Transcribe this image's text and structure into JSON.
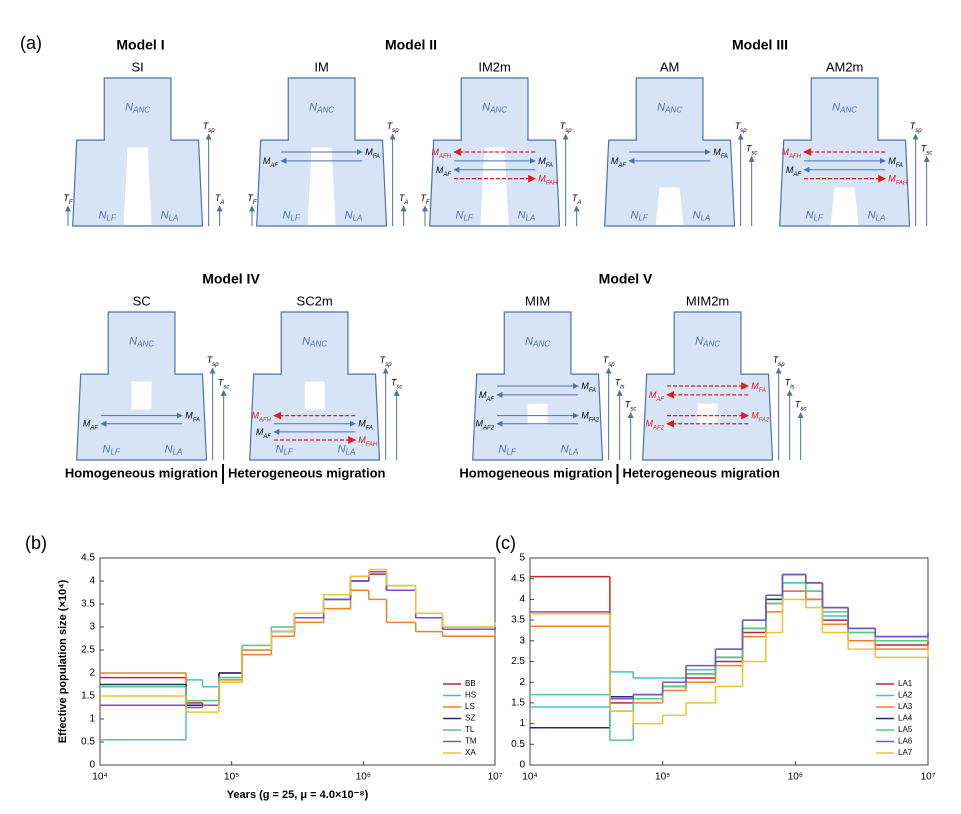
{
  "panel_a": {
    "panel_label": "(a)",
    "groups": [
      {
        "title": "Model I",
        "diagrams": [
          {
            "name": "SI",
            "split": "isolation",
            "pop_anc": {
              "base": "N",
              "sub": "ANC"
            },
            "pop_left": {
              "base": "N",
              "sub": "LF"
            },
            "pop_right": {
              "base": "N",
              "sub": "LA"
            },
            "times": [
              {
                "base": "T",
                "sub": "sp"
              }
            ],
            "t_left": {
              "base": "T",
              "sub": "F"
            },
            "t_right": {
              "base": "T",
              "sub": "A"
            },
            "migration": []
          }
        ]
      },
      {
        "title": "Model II",
        "diagrams": [
          {
            "name": "IM",
            "split": "isolation",
            "pop_anc": {
              "base": "N",
              "sub": "ANC"
            },
            "pop_left": {
              "base": "N",
              "sub": "LF"
            },
            "pop_right": {
              "base": "N",
              "sub": "LA"
            },
            "times": [
              {
                "base": "T",
                "sub": "sp"
              }
            ],
            "t_left": {
              "base": "T",
              "sub": "F"
            },
            "t_right": {
              "base": "T",
              "sub": "A"
            },
            "migration": [
              {
                "label": {
                  "base": "M",
                  "sub": "FA"
                },
                "dir": "right",
                "hetero": false,
                "phase": "early"
              },
              {
                "label": {
                  "base": "M",
                  "sub": "AF"
                },
                "dir": "left",
                "hetero": false,
                "phase": "early"
              }
            ]
          },
          {
            "name": "IM2m",
            "split": "isolation",
            "pop_anc": {
              "base": "N",
              "sub": "ANC"
            },
            "pop_left": {
              "base": "N",
              "sub": "LF"
            },
            "pop_right": {
              "base": "N",
              "sub": "LA"
            },
            "times": [
              {
                "base": "T",
                "sub": "sp"
              }
            ],
            "t_left": {
              "base": "T",
              "sub": "F"
            },
            "t_right": {
              "base": "T",
              "sub": "A"
            },
            "migration": [
              {
                "label": {
                  "base": "M",
                  "sub": "AFH"
                },
                "dir": "left",
                "hetero": true,
                "phase": "early"
              },
              {
                "label": {
                  "base": "M",
                  "sub": "FA"
                },
                "dir": "right",
                "hetero": false,
                "phase": "early"
              },
              {
                "label": {
                  "base": "M",
                  "sub": "AF"
                },
                "dir": "left",
                "hetero": false,
                "phase": "early"
              },
              {
                "label": {
                  "base": "M",
                  "sub": "FAH"
                },
                "dir": "right",
                "hetero": true,
                "phase": "early"
              }
            ]
          }
        ]
      },
      {
        "title": "Model III",
        "diagrams": [
          {
            "name": "AM",
            "split": "ancient",
            "pop_anc": {
              "base": "N",
              "sub": "ANC"
            },
            "pop_left": {
              "base": "N",
              "sub": "LF"
            },
            "pop_right": {
              "base": "N",
              "sub": "LA"
            },
            "times": [
              {
                "base": "T",
                "sub": "sp"
              },
              {
                "base": "T",
                "sub": "sc"
              }
            ],
            "migration": [
              {
                "label": {
                  "base": "M",
                  "sub": "FA"
                },
                "dir": "right",
                "hetero": false,
                "phase": "early"
              },
              {
                "label": {
                  "base": "M",
                  "sub": "AF"
                },
                "dir": "left",
                "hetero": false,
                "phase": "early"
              }
            ]
          },
          {
            "name": "AM2m",
            "split": "ancient",
            "pop_anc": {
              "base": "N",
              "sub": "ANC"
            },
            "pop_left": {
              "base": "N",
              "sub": "LF"
            },
            "pop_right": {
              "base": "N",
              "sub": "LA"
            },
            "times": [
              {
                "base": "T",
                "sub": "sp"
              },
              {
                "base": "T",
                "sub": "sc"
              }
            ],
            "migration": [
              {
                "label": {
                  "base": "M",
                  "sub": "AFH"
                },
                "dir": "left",
                "hetero": true,
                "phase": "early"
              },
              {
                "label": {
                  "base": "M",
                  "sub": "FA"
                },
                "dir": "right",
                "hetero": false,
                "phase": "early"
              },
              {
                "label": {
                  "base": "M",
                  "sub": "AF"
                },
                "dir": "left",
                "hetero": false,
                "phase": "early"
              },
              {
                "label": {
                  "base": "M",
                  "sub": "FAH"
                },
                "dir": "right",
                "hetero": true,
                "phase": "early"
              }
            ]
          }
        ]
      },
      {
        "title": "Model IV",
        "footer": [
          "Homogeneous migration",
          "Heterogeneous migration"
        ],
        "diagrams": [
          {
            "name": "SC",
            "split": "secondary",
            "pop_anc": {
              "base": "N",
              "sub": "ANC"
            },
            "pop_left": {
              "base": "N",
              "sub": "LF"
            },
            "pop_right": {
              "base": "N",
              "sub": "LA"
            },
            "times": [
              {
                "base": "T",
                "sub": "sp"
              },
              {
                "base": "T",
                "sub": "sc"
              }
            ],
            "migration": [
              {
                "label": {
                  "base": "M",
                  "sub": "FA"
                },
                "dir": "right",
                "hetero": false,
                "phase": "late"
              },
              {
                "label": {
                  "base": "M",
                  "sub": "AF"
                },
                "dir": "left",
                "hetero": false,
                "phase": "late"
              }
            ]
          },
          {
            "name": "SC2m",
            "split": "secondary",
            "pop_anc": {
              "base": "N",
              "sub": "ANC"
            },
            "pop_left": {
              "base": "N",
              "sub": "LF"
            },
            "pop_right": {
              "base": "N",
              "sub": "LA"
            },
            "times": [
              {
                "base": "T",
                "sub": "sp"
              },
              {
                "base": "T",
                "sub": "sc"
              }
            ],
            "migration": [
              {
                "label": {
                  "base": "M",
                  "sub": "AFH"
                },
                "dir": "left",
                "hetero": true,
                "phase": "late"
              },
              {
                "label": {
                  "base": "M",
                  "sub": "FA"
                },
                "dir": "right",
                "hetero": false,
                "phase": "late"
              },
              {
                "label": {
                  "base": "M",
                  "sub": "AF"
                },
                "dir": "left",
                "hetero": false,
                "phase": "late"
              },
              {
                "label": {
                  "base": "M",
                  "sub": "FAH"
                },
                "dir": "right",
                "hetero": true,
                "phase": "late"
              }
            ]
          }
        ]
      },
      {
        "title": "Model V",
        "footer": [
          "Homogeneous migration",
          "Heterogeneous migration"
        ],
        "diagrams": [
          {
            "name": "MIM",
            "split": "multi",
            "pop_anc": {
              "base": "N",
              "sub": "ANC"
            },
            "pop_left": {
              "base": "N",
              "sub": "LF"
            },
            "pop_right": {
              "base": "N",
              "sub": "LA"
            },
            "times": [
              {
                "base": "T",
                "sub": "sp"
              },
              {
                "base": "T",
                "sub": "is"
              },
              {
                "base": "T",
                "sub": "sc"
              }
            ],
            "migration": [
              {
                "label": {
                  "base": "M",
                  "sub": "FA"
                },
                "dir": "right",
                "hetero": false,
                "phase": "early"
              },
              {
                "label": {
                  "base": "M",
                  "sub": "AF"
                },
                "dir": "left",
                "hetero": false,
                "phase": "early"
              },
              {
                "label": {
                  "base": "M",
                  "sub": "FA2"
                },
                "dir": "right",
                "hetero": false,
                "phase": "late"
              },
              {
                "label": {
                  "base": "M",
                  "sub": "AF2"
                },
                "dir": "left",
                "hetero": false,
                "phase": "late"
              }
            ]
          },
          {
            "name": "MIM2m",
            "split": "multi",
            "pop_anc": {
              "base": "N",
              "sub": "ANC"
            },
            "times": [
              {
                "base": "T",
                "sub": "sp"
              },
              {
                "base": "T",
                "sub": "is"
              },
              {
                "base": "T",
                "sub": "sc"
              }
            ],
            "migration": [
              {
                "label": {
                  "base": "M",
                  "sub": "FA"
                },
                "dir": "right",
                "hetero": true,
                "phase": "early"
              },
              {
                "label": {
                  "base": "M",
                  "sub": "AF"
                },
                "dir": "left",
                "hetero": true,
                "phase": "early"
              },
              {
                "label": {
                  "base": "M",
                  "sub": "FA2"
                },
                "dir": "right",
                "hetero": true,
                "phase": "late"
              },
              {
                "label": {
                  "base": "M",
                  "sub": "AF2"
                },
                "dir": "left",
                "hetero": true,
                "phase": "late"
              }
            ]
          }
        ]
      }
    ]
  },
  "chart_data": [
    {
      "type": "line",
      "step": true,
      "panel_label": "(b)",
      "xlabel": "Years (g = 25, μ = 4.0×10⁻⁸)",
      "ylabel": "Effective population size (×10⁴)",
      "log_x": true,
      "legend": "lower right",
      "xlim": [
        10000,
        10000000
      ],
      "xticks": [
        {
          "value": 10000,
          "label": "10⁴"
        },
        {
          "value": 100000,
          "label": "10⁵"
        },
        {
          "value": 1000000,
          "label": "10⁶"
        },
        {
          "value": 10000000,
          "label": "10⁷"
        }
      ],
      "ylim": [
        0,
        4.5
      ],
      "yticks": [
        0,
        0.5,
        1,
        1.5,
        2,
        2.5,
        3,
        3.5,
        4,
        4.5
      ],
      "x": [
        10000,
        45000,
        60000,
        80000,
        120000,
        200000,
        300000,
        500000,
        800000,
        1100000,
        1500000,
        2500000,
        4000000,
        10000000
      ],
      "series": [
        {
          "name": "BB",
          "color": "#c0282d",
          "values": [
            1.9,
            1.35,
            1.3,
            2.0,
            2.5,
            2.9,
            3.2,
            3.6,
            4.0,
            4.15,
            3.8,
            3.2,
            2.95,
            3.05
          ]
        },
        {
          "name": "HS",
          "color": "#3fc1d6",
          "values": [
            0.55,
            1.85,
            1.7,
            1.9,
            2.5,
            2.9,
            3.2,
            3.6,
            4.0,
            4.2,
            3.8,
            3.2,
            2.95,
            3.0
          ]
        },
        {
          "name": "LS",
          "color": "#f07f2a",
          "values": [
            2.0,
            1.3,
            1.3,
            1.85,
            2.4,
            2.8,
            3.1,
            3.4,
            3.8,
            3.6,
            3.1,
            2.9,
            2.8,
            2.85
          ]
        },
        {
          "name": "SZ",
          "color": "#1f2a6e",
          "values": [
            1.75,
            1.3,
            1.3,
            2.0,
            2.5,
            2.9,
            3.2,
            3.6,
            4.0,
            4.2,
            3.8,
            3.2,
            2.95,
            3.0
          ]
        },
        {
          "name": "TL",
          "color": "#49d17a",
          "values": [
            1.7,
            1.4,
            1.4,
            1.9,
            2.6,
            3.0,
            3.3,
            3.7,
            4.1,
            4.2,
            3.9,
            3.3,
            3.0,
            3.05
          ]
        },
        {
          "name": "TM",
          "color": "#7a4fd1",
          "values": [
            1.3,
            1.25,
            1.3,
            1.8,
            2.5,
            2.9,
            3.2,
            3.6,
            4.0,
            4.2,
            3.8,
            3.2,
            2.95,
            3.0
          ]
        },
        {
          "name": "XA",
          "color": "#f2c12e",
          "values": [
            1.5,
            1.15,
            1.15,
            1.8,
            2.5,
            2.9,
            3.3,
            3.7,
            4.1,
            4.25,
            3.9,
            3.3,
            3.0,
            3.1
          ]
        }
      ]
    },
    {
      "type": "line",
      "step": true,
      "panel_label": "(c)",
      "log_x": true,
      "legend": "lower right",
      "xlim": [
        10000,
        10000000
      ],
      "xticks": [
        {
          "value": 10000,
          "label": "10⁴"
        },
        {
          "value": 100000,
          "label": "10⁵"
        },
        {
          "value": 1000000,
          "label": "10⁶"
        },
        {
          "value": 10000000,
          "label": "10⁷"
        }
      ],
      "ylim": [
        0,
        5
      ],
      "yticks": [
        0,
        0.5,
        1,
        1.5,
        2,
        2.5,
        3,
        3.5,
        4,
        4.5,
        5
      ],
      "x": [
        10000,
        40000,
        60000,
        100000,
        150000,
        250000,
        400000,
        600000,
        800000,
        1200000,
        1600000,
        2500000,
        4000000,
        10000000
      ],
      "series": [
        {
          "name": "LA1",
          "color": "#c0282d",
          "values": [
            4.55,
            1.5,
            1.6,
            1.9,
            2.1,
            2.5,
            3.2,
            3.9,
            4.2,
            4.0,
            3.5,
            3.0,
            2.9,
            3.0
          ]
        },
        {
          "name": "LA2",
          "color": "#3fc1d6",
          "values": [
            1.4,
            2.25,
            2.1,
            2.1,
            2.3,
            2.8,
            3.5,
            4.0,
            4.4,
            4.2,
            3.6,
            3.2,
            3.0,
            3.1
          ]
        },
        {
          "name": "LA3",
          "color": "#f07f2a",
          "values": [
            3.35,
            1.3,
            1.5,
            1.8,
            2.0,
            2.4,
            3.1,
            3.7,
            4.2,
            4.0,
            3.4,
            3.0,
            2.8,
            2.9
          ]
        },
        {
          "name": "LA4",
          "color": "#1f2a6e",
          "values": [
            0.9,
            1.65,
            1.7,
            1.9,
            2.2,
            2.6,
            3.3,
            4.0,
            4.6,
            4.4,
            3.8,
            3.3,
            3.1,
            3.2
          ]
        },
        {
          "name": "LA5",
          "color": "#49d17a",
          "values": [
            1.7,
            0.6,
            1.6,
            1.9,
            2.2,
            2.6,
            3.3,
            3.9,
            4.4,
            4.2,
            3.7,
            3.2,
            3.0,
            3.1
          ]
        },
        {
          "name": "LA6",
          "color": "#7a4fd1",
          "values": [
            3.7,
            1.6,
            1.7,
            2.0,
            2.4,
            2.8,
            3.5,
            4.1,
            4.6,
            4.4,
            3.8,
            3.3,
            3.1,
            3.2
          ]
        },
        {
          "name": "LA7",
          "color": "#f2c12e",
          "values": [
            3.65,
            1.3,
            1.0,
            1.2,
            1.5,
            1.9,
            2.5,
            3.2,
            4.0,
            3.8,
            3.2,
            2.8,
            2.6,
            2.8
          ]
        }
      ]
    }
  ]
}
